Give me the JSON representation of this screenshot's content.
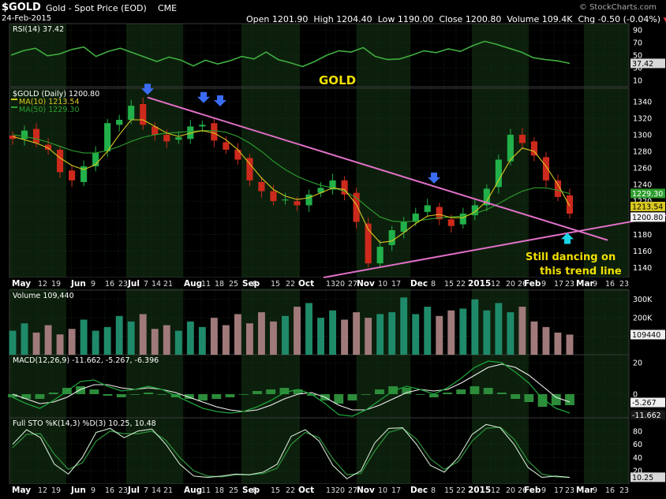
{
  "header": {
    "symbol": "$GOLD",
    "description": "Gold - Spot Price (EOD)",
    "exchange": "CME",
    "brand": "© StockCharts.com",
    "date": "24-Feb-2015",
    "open_label": "Open",
    "open": "1201.90",
    "high_label": "High",
    "high": "1204.40",
    "low_label": "Low",
    "low": "1190.00",
    "close_label": "Close",
    "close": "1200.80",
    "volume_label": "Volume",
    "volume": "109.4K",
    "chg_label": "Chg",
    "chg": "-0.50 (-0.04%)",
    "chg_arrow": "▼"
  },
  "annotations": {
    "gold_label": "GOLD",
    "note_line1": "Still dancing on",
    "note_line2": "this trend line"
  },
  "colors": {
    "background": "#000000",
    "band_dark": "#0c1f0c",
    "grid": "#1d3a1d",
    "up_candle": "#22b04a",
    "down_candle": "#cc2a1c",
    "ma10": "#d8c820",
    "ma50": "#2e9e2e",
    "trendline": "#e070c8",
    "arrow_blue": "#3b6cf5",
    "arrow_cyan": "#18d6e6",
    "volume_up": "#1f8a6a",
    "volume_down": "#a07a7a",
    "gold_text": "#f0e000"
  },
  "chart_data": [
    {
      "type": "line",
      "title": "RSI(14) 37.42",
      "ylim": [
        0,
        100
      ],
      "y_ticks": [
        "90",
        "70",
        "50",
        "30",
        "10"
      ],
      "last_value_label": "37.42",
      "series": [
        {
          "name": "RSI(14)",
          "values": [
            50,
            57,
            61,
            49,
            52,
            59,
            63,
            48,
            56,
            61,
            54,
            47,
            40,
            47,
            42,
            33,
            42,
            36,
            41,
            48,
            44,
            55,
            43,
            38,
            32,
            40,
            50,
            57,
            55,
            62,
            48,
            43,
            44,
            50,
            57,
            54,
            60,
            56,
            65,
            72,
            67,
            61,
            55,
            46,
            43,
            41,
            37
          ]
        }
      ]
    },
    {
      "type": "line",
      "title": "$GOLD (Daily) 1200.80",
      "ylim": [
        1128,
        1356
      ],
      "y_ticks": [
        "1340",
        "1320",
        "1300",
        "1280",
        "1260",
        "1240",
        "1220",
        "1200",
        "1180",
        "1160",
        "1140"
      ],
      "price_tags": [
        "1229.30",
        "1213.54",
        "1200.80"
      ],
      "x_tick_labels": [
        "May",
        "12",
        "19",
        "Jun",
        "9",
        "16",
        "23",
        "Jul",
        "7",
        "14",
        "21",
        "Aug",
        "11",
        "18",
        "25",
        "Sep",
        "8",
        "15",
        "22",
        "Oct",
        "13",
        "20",
        "27",
        "Nov",
        "10",
        "17",
        "Dec",
        "8",
        "15",
        "22",
        "2015",
        "12",
        "20",
        "26",
        "Feb",
        "9",
        "17",
        "23",
        "Mar",
        "9",
        "16",
        "23"
      ],
      "series": [
        {
          "name": "$GOLD (Daily) 1200.80",
          "values": [
            1295,
            1305,
            1290,
            1282,
            1255,
            1245,
            1262,
            1278,
            1314,
            1318,
            1335,
            1312,
            1300,
            1292,
            1297,
            1310,
            1312,
            1293,
            1282,
            1270,
            1245,
            1232,
            1220,
            1222,
            1215,
            1228,
            1236,
            1245,
            1228,
            1195,
            1145,
            1165,
            1185,
            1195,
            1205,
            1215,
            1198,
            1190,
            1205,
            1215,
            1235,
            1270,
            1300,
            1290,
            1275,
            1245,
            1225,
            1205
          ]
        },
        {
          "name": "MA(10) 1213.54",
          "values": [
            1298,
            1294,
            1290,
            1284,
            1272,
            1263,
            1258,
            1264,
            1280,
            1300,
            1318,
            1318,
            1310,
            1302,
            1298,
            1302,
            1305,
            1302,
            1294,
            1282,
            1265,
            1248,
            1234,
            1226,
            1222,
            1224,
            1230,
            1236,
            1234,
            1216,
            1186,
            1170,
            1172,
            1182,
            1193,
            1202,
            1204,
            1200,
            1200,
            1207,
            1220,
            1245,
            1270,
            1284,
            1280,
            1262,
            1240,
            1214
          ]
        },
        {
          "name": "MA(50) 1229.30",
          "values": [
            1300,
            1298,
            1295,
            1291,
            1286,
            1281,
            1278,
            1278,
            1281,
            1286,
            1292,
            1297,
            1300,
            1302,
            1303,
            1304,
            1305,
            1305,
            1303,
            1298,
            1290,
            1280,
            1268,
            1258,
            1250,
            1244,
            1239,
            1236,
            1232,
            1224,
            1212,
            1201,
            1196,
            1195,
            1196,
            1198,
            1200,
            1201,
            1202,
            1205,
            1210,
            1217,
            1225,
            1232,
            1236,
            1236,
            1233,
            1229
          ]
        }
      ],
      "trendlines": [
        {
          "name": "descending resistance",
          "points": [
            [
              "Jul 10",
              1345
            ],
            [
              "Mar 1",
              1173
            ]
          ]
        },
        {
          "name": "ascending support",
          "points": [
            [
              "Oct 15",
              1128
            ],
            [
              "Mar 23",
              1203
            ]
          ]
        }
      ],
      "markers": [
        {
          "name": "arrow-down-1",
          "date": "Jul 10",
          "value": 1352
        },
        {
          "name": "arrow-down-2",
          "date": "Aug 5",
          "value": 1342
        },
        {
          "name": "arrow-down-3",
          "date": "Aug 20",
          "value": 1338
        },
        {
          "name": "arrow-down-4",
          "date": "Dec 9",
          "value": 1245
        },
        {
          "name": "arrow-up-1",
          "date": "Feb 24",
          "value": 1178
        }
      ]
    },
    {
      "type": "bar",
      "title": "Volume 109,440",
      "ylim": [
        0,
        350
      ],
      "y_ticks": [
        "300K",
        "200K",
        "100K"
      ],
      "last_value_label": "109440",
      "values": [
        130,
        170,
        120,
        160,
        110,
        140,
        190,
        130,
        150,
        210,
        180,
        220,
        140,
        160,
        130,
        180,
        150,
        200,
        160,
        220,
        170,
        230,
        180,
        210,
        260,
        280,
        200,
        240,
        190,
        230,
        200,
        220,
        230,
        310,
        220,
        260,
        210,
        240,
        250,
        300,
        240,
        280,
        230,
        260,
        180,
        150,
        120,
        109
      ]
    },
    {
      "type": "line",
      "title": "MACD(12,26,9) -11.662, -5.267, -6.396",
      "ylim": [
        -15,
        25
      ],
      "y_ticks": [
        "20",
        "0"
      ],
      "value_tags": [
        "-5.267",
        "-11.662"
      ],
      "series": [
        {
          "name": "MACD(12,26,9)",
          "values": [
            -2,
            -6,
            -9,
            -4,
            2,
            8,
            9,
            5,
            2,
            3,
            5,
            3,
            -1,
            -5,
            -9,
            -11,
            -12,
            -11,
            -8,
            -4,
            1,
            3,
            0,
            -6,
            -13,
            -14,
            -10,
            -4,
            2,
            5,
            3,
            0,
            4,
            10,
            17,
            21,
            20,
            14,
            7,
            -3,
            -9,
            -12
          ]
        },
        {
          "name": "Signal",
          "values": [
            0,
            -3,
            -6,
            -5,
            -2,
            3,
            6,
            6,
            4,
            3,
            4,
            3,
            1,
            -2,
            -5,
            -8,
            -10,
            -11,
            -10,
            -7,
            -3,
            0,
            1,
            -2,
            -7,
            -10,
            -10,
            -7,
            -3,
            1,
            3,
            2,
            3,
            7,
            12,
            17,
            19,
            17,
            12,
            5,
            -2,
            -5
          ]
        }
      ]
    },
    {
      "type": "line",
      "title": "Full STO %K(14,3) %D(3) 10.25, 10.48",
      "ylim": [
        0,
        100
      ],
      "y_ticks": [
        "80",
        "60",
        "40",
        "20"
      ],
      "last_value_label": "10.25",
      "series": [
        {
          "name": "%K(14,3) 10.25",
          "values": [
            60,
            82,
            70,
            30,
            15,
            40,
            78,
            84,
            70,
            80,
            83,
            60,
            30,
            12,
            10,
            12,
            15,
            14,
            18,
            30,
            72,
            82,
            65,
            28,
            8,
            20,
            62,
            84,
            85,
            60,
            28,
            18,
            40,
            75,
            90,
            85,
            60,
            25,
            10,
            12,
            10
          ]
        },
        {
          "name": "%D(3) 10.48",
          "values": [
            55,
            75,
            76,
            45,
            22,
            32,
            65,
            80,
            76,
            76,
            80,
            66,
            40,
            20,
            12,
            11,
            14,
            14,
            16,
            24,
            60,
            78,
            70,
            38,
            14,
            16,
            50,
            78,
            84,
            68,
            38,
            22,
            34,
            65,
            84,
            86,
            68,
            35,
            15,
            11,
            10
          ]
        }
      ]
    }
  ]
}
